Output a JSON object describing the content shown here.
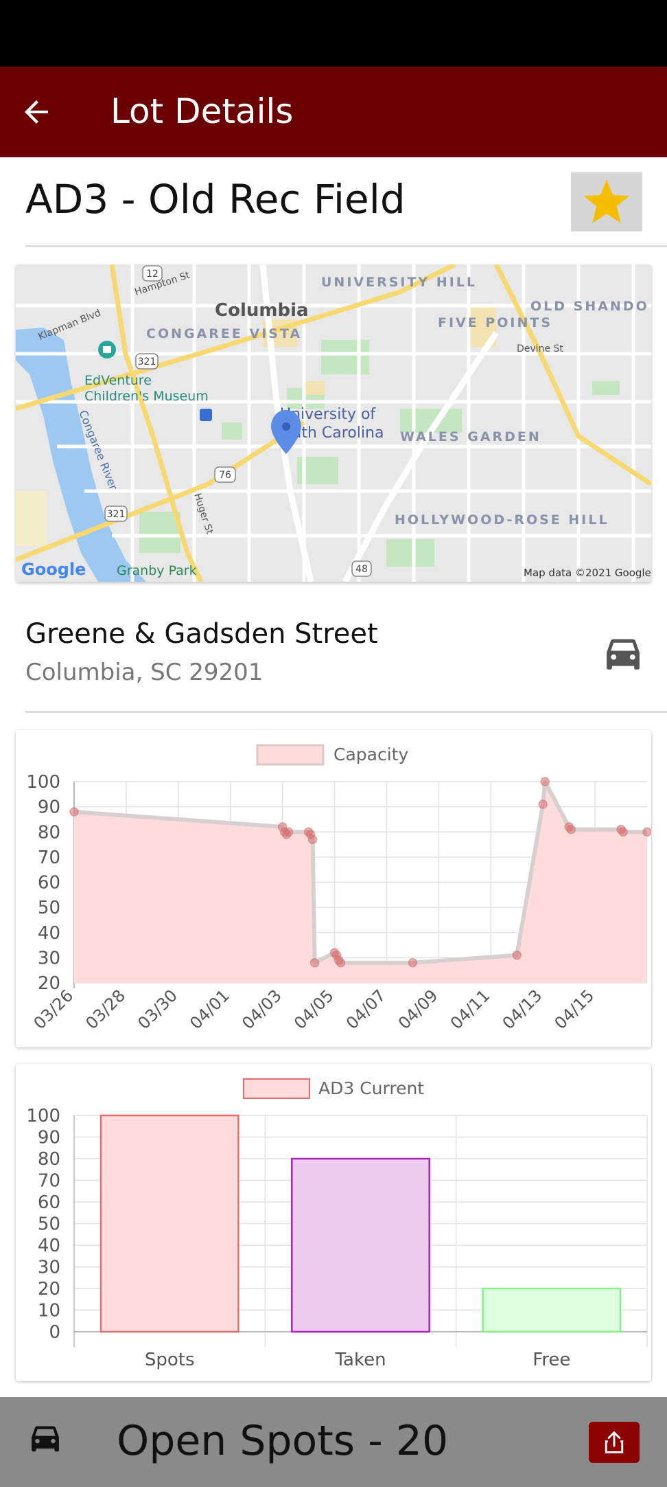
{
  "app_bar": {
    "title": "Lot Details"
  },
  "lot": {
    "title": "AD3 - Old Rec Field",
    "favorite": true
  },
  "map": {
    "labels": {
      "university_hill": "UNIVERSITY HILL",
      "columbia": "Columbia",
      "old_shandon": "OLD SHANDO",
      "congaree_vista": "CONGAREE VISTA",
      "five_points": "FIVE POINTS",
      "devine_st": "Devine St",
      "edventure": "EdVenture",
      "childrens_museum": "Children's Museum",
      "usc_line1": "University of",
      "usc_line2": "South Carolina",
      "wales_garden": "WALES GARDEN",
      "congaree_river": "Congaree River",
      "huger_st": "Huger St",
      "hollywood_rose_hill": "HOLLYWOOD-ROSE HILL",
      "granby_park": "Granby Park",
      "hampton_st": "Hampton St",
      "klapman_blvd": "Klapman Blvd",
      "route_12": "12",
      "route_321a": "321",
      "route_321b": "321",
      "route_76": "76",
      "route_48": "48",
      "google": "Google",
      "attribution": "Map data ©2021 Google"
    }
  },
  "address": {
    "street": "Greene & Gadsden Street",
    "city": "Columbia, SC 29201"
  },
  "bottom_bar": {
    "open_spots": "Open Spots - 20"
  },
  "colors": {
    "app_bar": "#6b0000",
    "star": "#f5bf00",
    "capacity_fill": "#ffdcdc",
    "capacity_stroke": "#e07070",
    "taken_fill": "#eeccf0",
    "taken_stroke": "#b020c0",
    "free_fill": "#ddffdd",
    "free_stroke": "#88ee88"
  },
  "chart_data": [
    {
      "type": "area",
      "legend": [
        "Capacity"
      ],
      "ylim": [
        20,
        100
      ],
      "yticks": [
        100,
        90,
        80,
        70,
        60,
        50,
        40,
        30,
        20
      ],
      "xlim": [
        "03/26",
        "04/17"
      ],
      "xticks": [
        "03/26",
        "03/28",
        "03/30",
        "04/01",
        "04/03",
        "04/05",
        "04/07",
        "04/09",
        "04/11",
        "04/13",
        "04/15"
      ],
      "series": [
        {
          "name": "Capacity",
          "points": [
            {
              "x": "03/26",
              "y": 88
            },
            {
              "x": "04/03",
              "y": 82
            },
            {
              "x": "04/03",
              "y": 80
            },
            {
              "x": "04/03",
              "y": 79
            },
            {
              "x": "04/03",
              "y": 80
            },
            {
              "x": "04/04",
              "y": 80
            },
            {
              "x": "04/04",
              "y": 79
            },
            {
              "x": "04/04",
              "y": 77
            },
            {
              "x": "04/04",
              "y": 28
            },
            {
              "x": "04/05",
              "y": 32
            },
            {
              "x": "04/05",
              "y": 31
            },
            {
              "x": "04/05",
              "y": 29
            },
            {
              "x": "04/05",
              "y": 28
            },
            {
              "x": "04/08",
              "y": 28
            },
            {
              "x": "04/12",
              "y": 31
            },
            {
              "x": "04/13",
              "y": 91
            },
            {
              "x": "04/13",
              "y": 100
            },
            {
              "x": "04/14",
              "y": 82
            },
            {
              "x": "04/14",
              "y": 81
            },
            {
              "x": "04/16",
              "y": 81
            },
            {
              "x": "04/16",
              "y": 80
            },
            {
              "x": "04/17",
              "y": 80
            }
          ]
        }
      ]
    },
    {
      "type": "bar",
      "legend": [
        "AD3 Current"
      ],
      "ylim": [
        0,
        100
      ],
      "yticks": [
        100,
        90,
        80,
        70,
        60,
        50,
        40,
        30,
        20,
        10,
        0
      ],
      "categories": [
        "Spots",
        "Taken",
        "Free"
      ],
      "series": [
        {
          "name": "AD3 Current",
          "values": [
            100,
            80,
            20
          ]
        }
      ]
    }
  ]
}
